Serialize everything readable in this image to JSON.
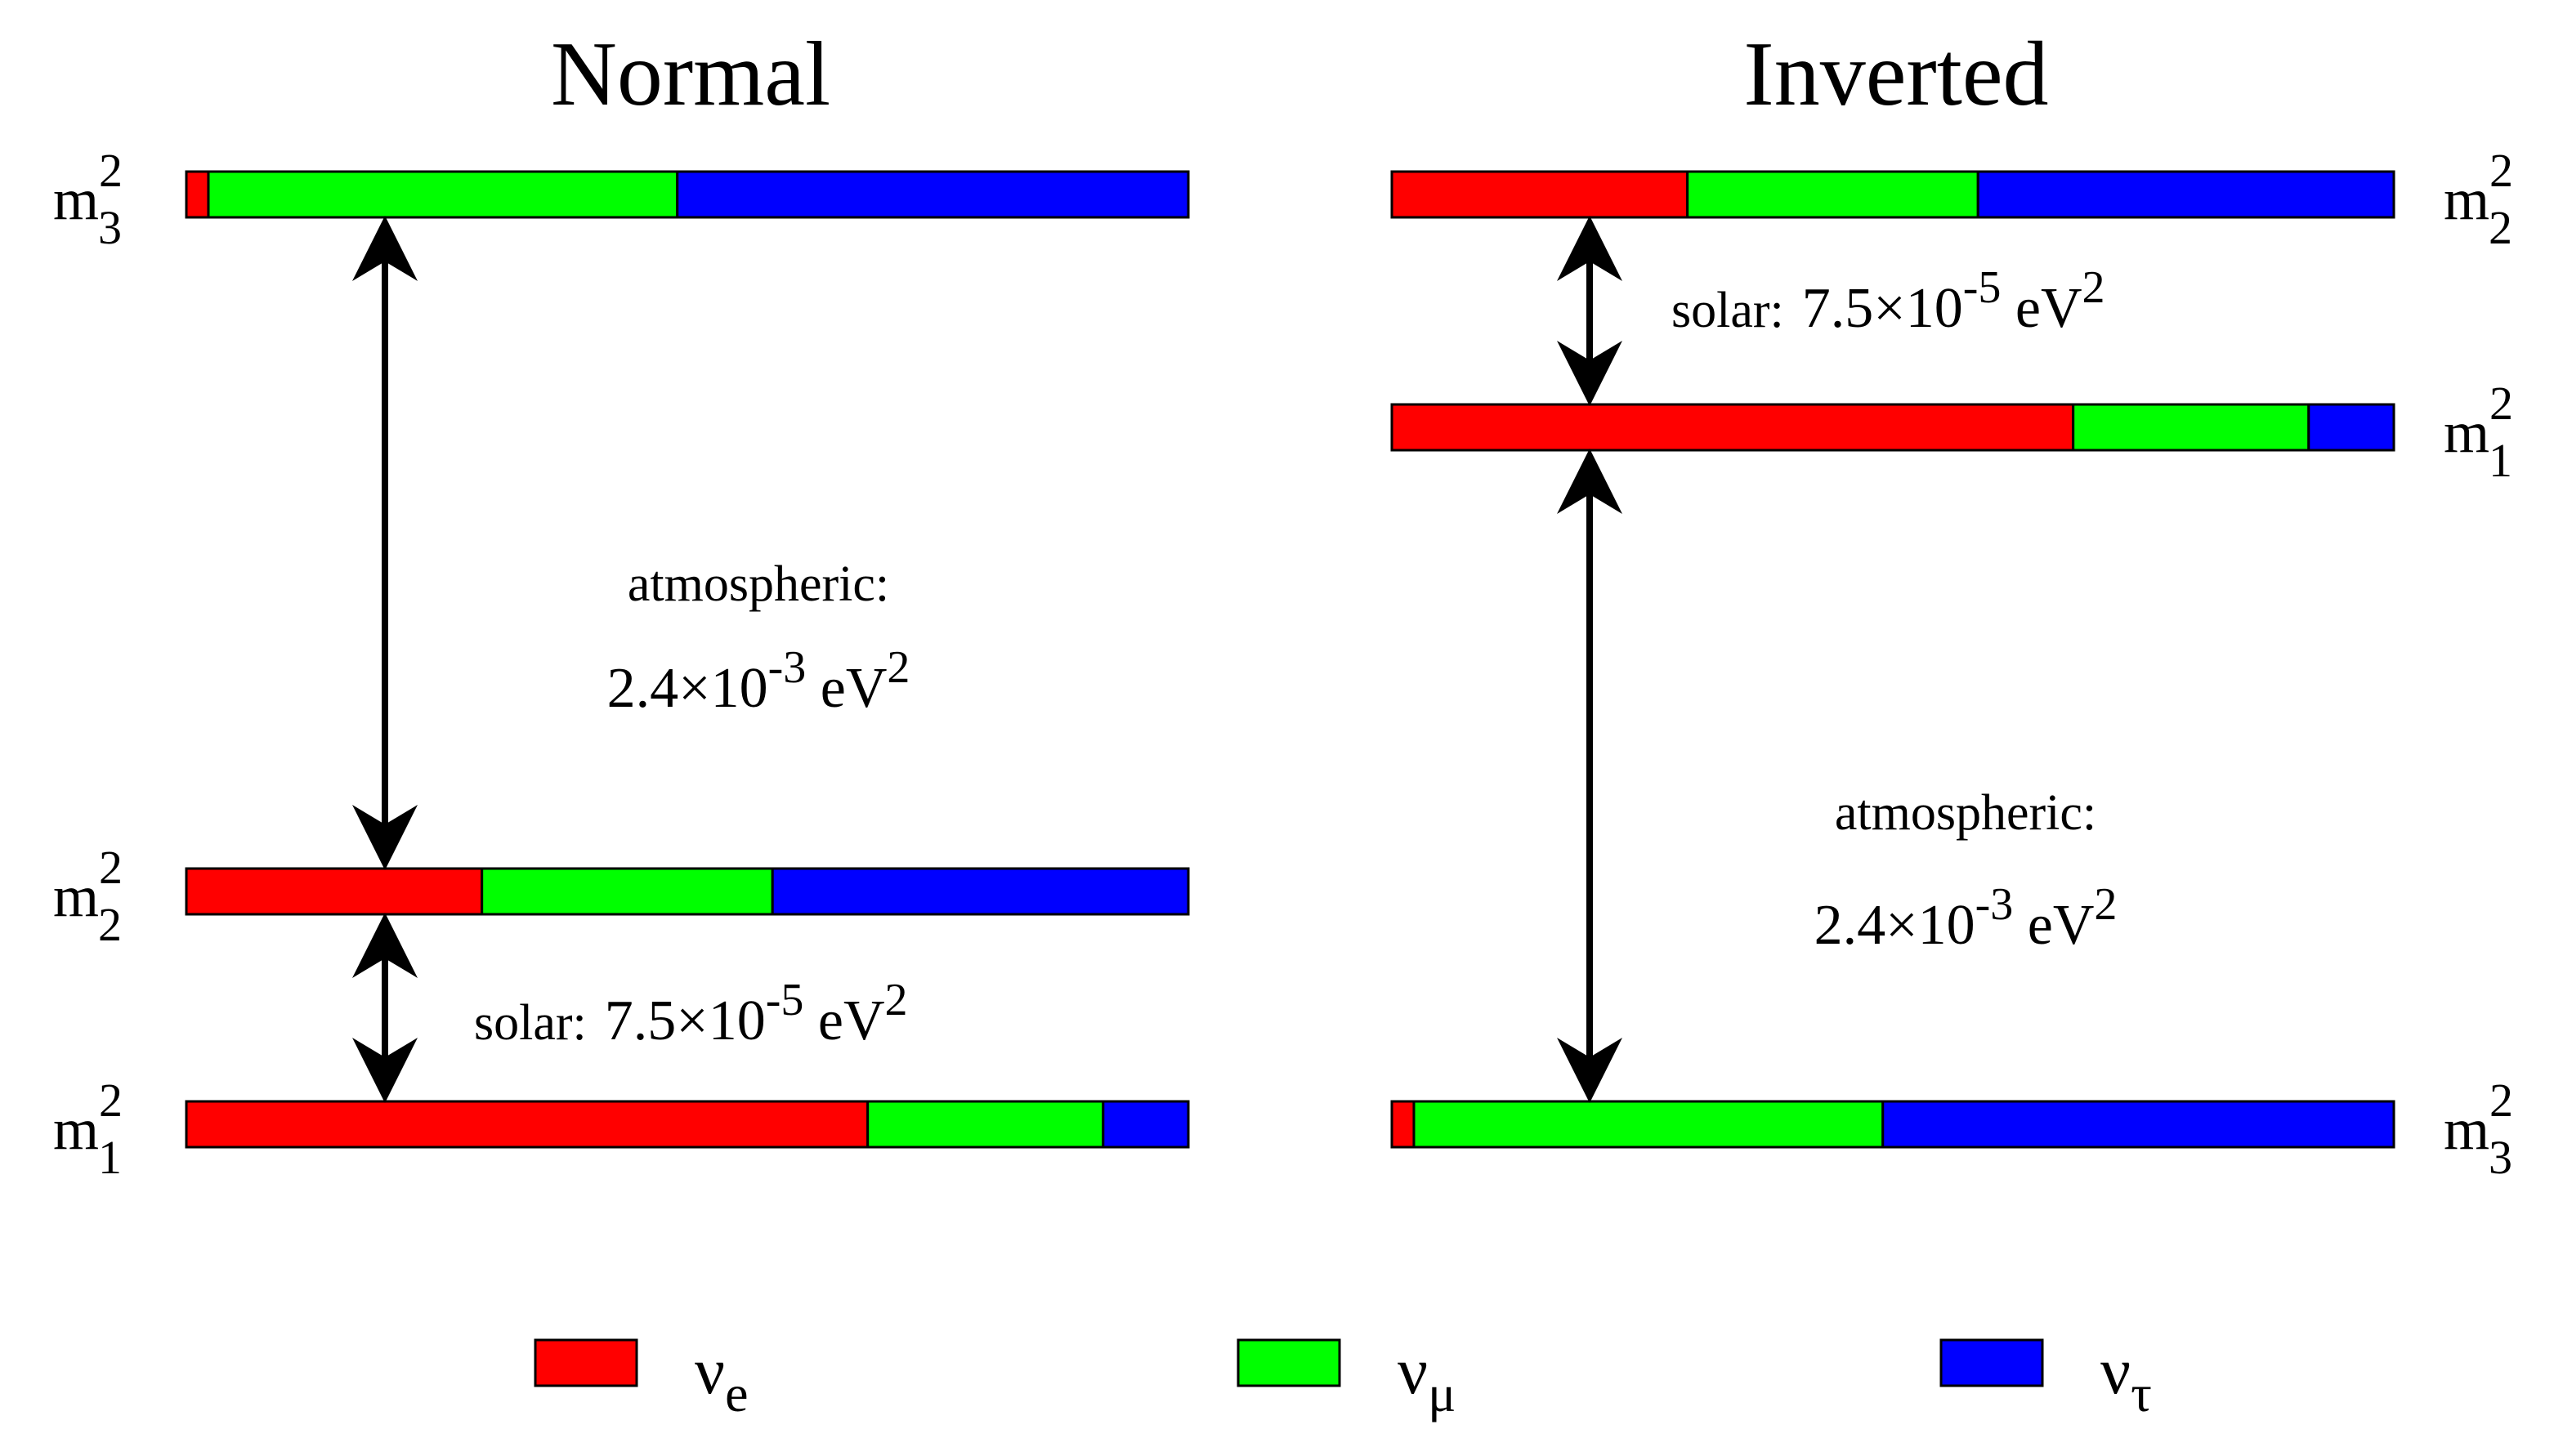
{
  "colors": {
    "nu_e": "#ff0000",
    "nu_mu": "#00ff00",
    "nu_tau": "#0000ff",
    "outline": "#000000"
  },
  "panels": [
    {
      "id": "normal",
      "title": "Normal",
      "levels": [
        {
          "mass_base": "m",
          "sub": "3",
          "sup": "2",
          "label_side": "left",
          "fractions": {
            "nu_e": 0.022,
            "nu_mu": 0.468,
            "nu_tau": 0.51
          }
        },
        {
          "mass_base": "m",
          "sub": "2",
          "sup": "2",
          "label_side": "left",
          "fractions": {
            "nu_e": 0.295,
            "nu_mu": 0.29,
            "nu_tau": 0.415
          }
        },
        {
          "mass_base": "m",
          "sub": "1",
          "sup": "2",
          "label_side": "left",
          "fractions": {
            "nu_e": 0.68,
            "nu_mu": 0.235,
            "nu_tau": 0.085
          }
        }
      ],
      "splittings": [
        {
          "type": "atmospheric",
          "name": "atmospheric:",
          "value": "2.4×10",
          "exp": "-3",
          "unit": "eV",
          "unit_exp": "2"
        },
        {
          "type": "solar",
          "name": "solar:",
          "value": "7.5×10",
          "exp": "-5",
          "unit": "eV",
          "unit_exp": "2"
        }
      ]
    },
    {
      "id": "inverted",
      "title": "Inverted",
      "levels": [
        {
          "mass_base": "m",
          "sub": "2",
          "sup": "2",
          "label_side": "right",
          "fractions": {
            "nu_e": 0.295,
            "nu_mu": 0.29,
            "nu_tau": 0.415
          }
        },
        {
          "mass_base": "m",
          "sub": "1",
          "sup": "2",
          "label_side": "right",
          "fractions": {
            "nu_e": 0.68,
            "nu_mu": 0.235,
            "nu_tau": 0.085
          }
        },
        {
          "mass_base": "m",
          "sub": "3",
          "sup": "2",
          "label_side": "right",
          "fractions": {
            "nu_e": 0.022,
            "nu_mu": 0.468,
            "nu_tau": 0.51
          }
        }
      ],
      "splittings": [
        {
          "type": "solar",
          "name": "solar:",
          "value": "7.5×10",
          "exp": "-5",
          "unit": "eV",
          "unit_exp": "2"
        },
        {
          "type": "atmospheric",
          "name": "atmospheric:",
          "value": "2.4×10",
          "exp": "-3",
          "unit": "eV",
          "unit_exp": "2"
        }
      ]
    }
  ],
  "legend": [
    {
      "key": "nu_e",
      "symbol": "ν",
      "sub": "e",
      "icon": "red-swatch"
    },
    {
      "key": "nu_mu",
      "symbol": "ν",
      "sub": "μ",
      "icon": "green-swatch"
    },
    {
      "key": "nu_tau",
      "symbol": "ν",
      "sub": "τ",
      "icon": "blue-swatch"
    }
  ]
}
